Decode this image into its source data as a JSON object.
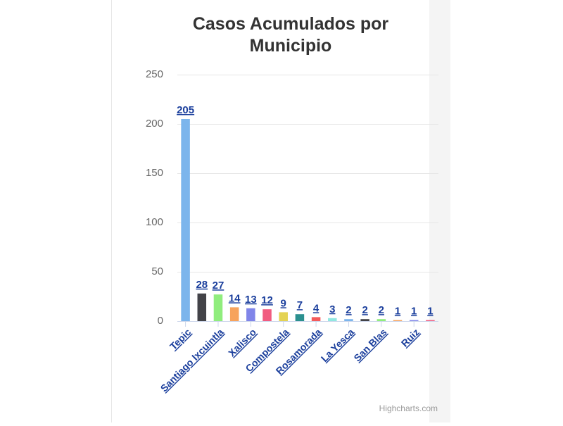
{
  "chart_data": {
    "type": "bar",
    "title": "Casos Acumulados por Municipio",
    "categories": [
      "Tepic",
      null,
      "Santiago Ixcuintla",
      null,
      "Xalisco",
      null,
      "Compostela",
      null,
      "Rosamorada",
      null,
      "La Yesca",
      null,
      "San Blas",
      null,
      "Ruiz",
      null
    ],
    "values": [
      205,
      28,
      27,
      14,
      13,
      12,
      9,
      7,
      4,
      3,
      2,
      2,
      2,
      1,
      1,
      1
    ],
    "colors": [
      "#7cb5ec",
      "#434348",
      "#90ed7d",
      "#f7a35c",
      "#8085e9",
      "#f15c80",
      "#e4d354",
      "#2b908f",
      "#f45b5b",
      "#91e8e1",
      "#7cb5ec",
      "#434348",
      "#90ed7d",
      "#f7a35c",
      "#8085e9",
      "#f15c80"
    ],
    "ylim": [
      0,
      250
    ],
    "yticks": [
      0,
      50,
      100,
      150,
      200,
      250
    ],
    "grid": true,
    "credits": "Highcharts.com"
  }
}
